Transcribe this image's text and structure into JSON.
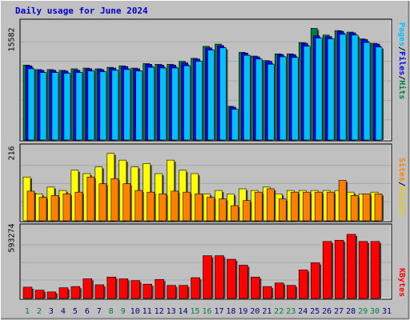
{
  "title": "Daily usage for June 2024",
  "colors": {
    "hits": "#008040",
    "files": "#0000ff",
    "pages": "#00c0ff",
    "visits": "#ffff00",
    "sites": "#ff8000",
    "kbytes": "#ff0000",
    "weekend_day": "#008040",
    "weekday": "#000080"
  },
  "chart_data": [
    {
      "type": "bar",
      "panel": "requests",
      "ymax_label": "15582",
      "ylim": [
        0,
        15582
      ],
      "right_label": {
        "pages": "Pages",
        "sep1": "/",
        "files": "Files",
        "sep2": "/",
        "hits": "Hits"
      },
      "series": [
        {
          "name": "Hits",
          "values": [
            10000,
            9400,
            9400,
            9300,
            9500,
            9600,
            9500,
            9700,
            9900,
            9600,
            10200,
            10100,
            10100,
            10500,
            10900,
            12500,
            12800,
            4500,
            11700,
            11200,
            10600,
            11500,
            11500,
            13000,
            14900,
            14000,
            14600,
            14400,
            13500,
            12900
          ]
        },
        {
          "name": "Files",
          "values": [
            9900,
            9300,
            9300,
            9200,
            9300,
            9500,
            9400,
            9600,
            9800,
            9500,
            10100,
            10000,
            10000,
            10300,
            10800,
            12300,
            12600,
            4400,
            11600,
            11100,
            10500,
            11400,
            11400,
            12900,
            13900,
            13800,
            14500,
            14300,
            13400,
            12800
          ]
        },
        {
          "name": "Pages",
          "values": [
            9500,
            9000,
            9000,
            8900,
            9000,
            9200,
            9100,
            9300,
            9400,
            9200,
            9700,
            9600,
            9600,
            9900,
            10500,
            12000,
            12300,
            4100,
            11300,
            10800,
            10100,
            11100,
            11000,
            12500,
            13600,
            13500,
            14100,
            14000,
            13000,
            12400
          ]
        }
      ]
    },
    {
      "type": "bar",
      "panel": "visitors",
      "ymax_label": "216",
      "ylim": [
        0,
        216
      ],
      "right_label": {
        "sites": "Sites",
        "sep": "/",
        "visits": "Visits"
      },
      "series": [
        {
          "name": "Visits",
          "values": [
            130,
            80,
            100,
            90,
            150,
            140,
            160,
            200,
            180,
            160,
            170,
            140,
            180,
            150,
            140,
            80,
            90,
            80,
            95,
            90,
            100,
            80,
            90,
            90,
            90,
            90,
            90,
            85,
            80,
            85
          ]
        },
        {
          "name": "Sites",
          "values": [
            88,
            70,
            75,
            80,
            85,
            130,
            110,
            125,
            110,
            90,
            85,
            80,
            88,
            85,
            80,
            70,
            65,
            45,
            60,
            85,
            95,
            65,
            85,
            85,
            85,
            85,
            120,
            75,
            80,
            80
          ]
        }
      ]
    },
    {
      "type": "bar",
      "panel": "kbytes",
      "ymax_label": "593274",
      "ylim": [
        0,
        593274
      ],
      "right_label": {
        "kbytes": "KBytes"
      },
      "series": [
        {
          "name": "KBytes",
          "values": [
            95000,
            70000,
            55000,
            90000,
            100000,
            165000,
            115000,
            180000,
            165000,
            150000,
            120000,
            160000,
            110000,
            110000,
            175000,
            360000,
            360000,
            330000,
            280000,
            180000,
            100000,
            130000,
            110000,
            240000,
            300000,
            480000,
            490000,
            540000,
            480000,
            480000
          ]
        }
      ]
    }
  ],
  "days": [
    "1",
    "2",
    "3",
    "4",
    "5",
    "6",
    "7",
    "8",
    "9",
    "10",
    "11",
    "12",
    "13",
    "14",
    "15",
    "16",
    "17",
    "18",
    "19",
    "20",
    "21",
    "22",
    "23",
    "24",
    "25",
    "26",
    "27",
    "28",
    "29",
    "30",
    "31"
  ],
  "weekend_days": [
    "1",
    "2",
    "8",
    "9",
    "15",
    "16",
    "22",
    "23",
    "29",
    "30"
  ]
}
